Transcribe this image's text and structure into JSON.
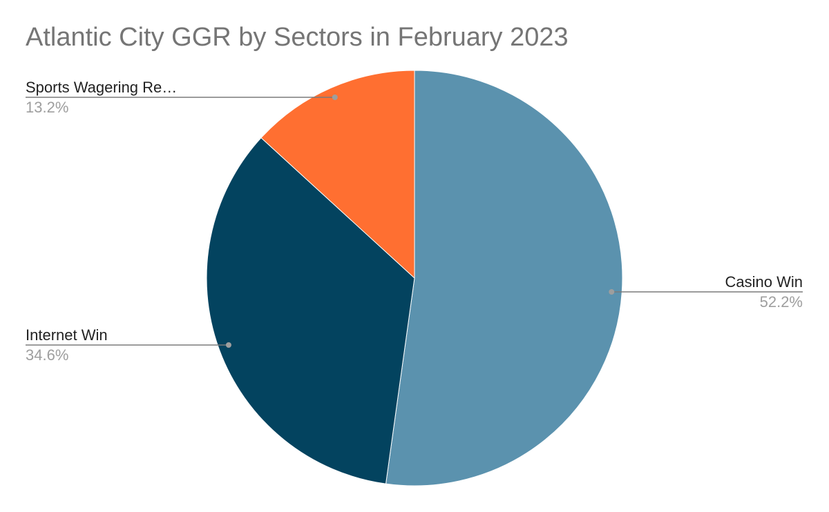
{
  "chart_data": {
    "type": "pie",
    "title": "Atlantic City GGR by Sectors in February 2023",
    "slices": [
      {
        "label": "Casino Win",
        "value": 52.2,
        "display": "52.2%",
        "color": "#5b92ae"
      },
      {
        "label": "Internet Win",
        "value": 34.6,
        "display": "34.6%",
        "color": "#03435f"
      },
      {
        "label": "Sports Wagering Re…",
        "value": 13.2,
        "display": "13.2%",
        "color": "#ff6f31"
      }
    ],
    "start": "12 o'clock",
    "direction": "clockwise",
    "legend": "none",
    "leader_line_color": "#7a7a7a"
  }
}
